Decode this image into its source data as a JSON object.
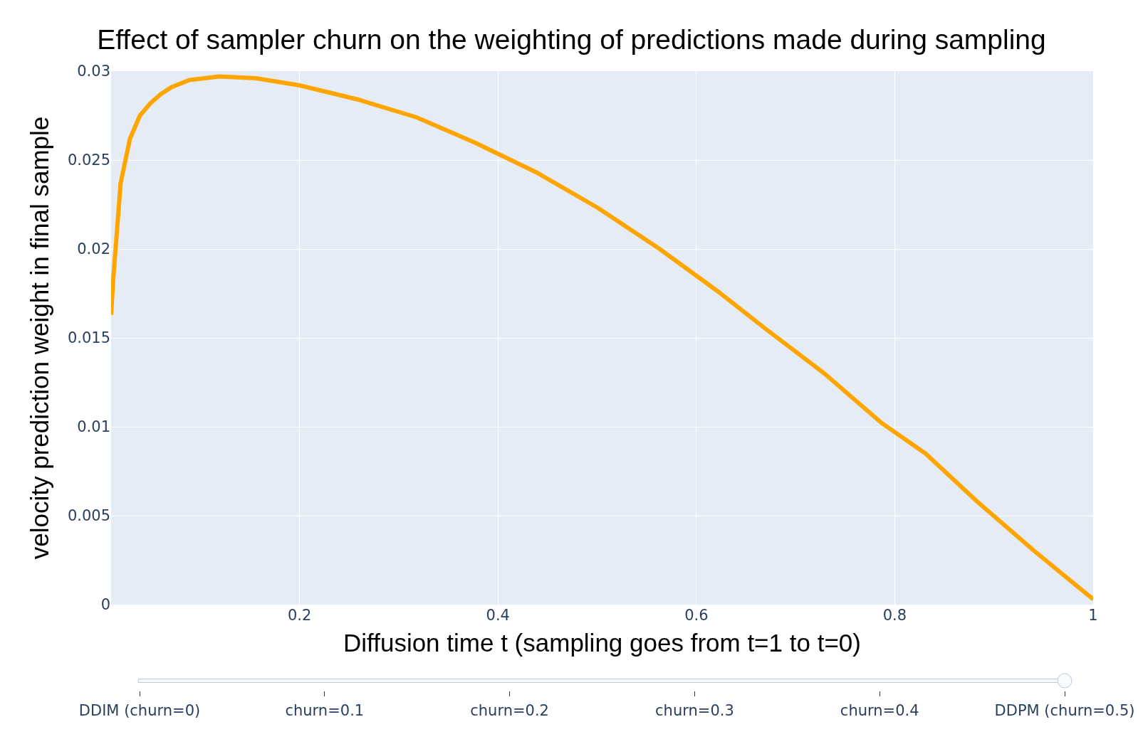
{
  "chart_data": {
    "type": "line",
    "title": "Effect of sampler churn on the weighting of predictions made during sampling",
    "xlabel": "Diffusion time t (sampling goes from t=1 to t=0)",
    "ylabel": "velocity prediction weight in final sample",
    "x": [
      0.01,
      0.012,
      0.0196,
      0.029,
      0.039,
      0.0497,
      0.06,
      0.071,
      0.089,
      0.119,
      0.156,
      0.2,
      0.259,
      0.318,
      0.376,
      0.439,
      0.501,
      0.563,
      0.622,
      0.67,
      0.729,
      0.787,
      0.831,
      0.883,
      0.941,
      1.0
    ],
    "series": [
      {
        "color": "#ffa500",
        "values": [
          0.0163,
          0.0182,
          0.0237,
          0.0262,
          0.0275,
          0.0282,
          0.0287,
          0.0291,
          0.0295,
          0.0297,
          0.0296,
          0.0292,
          0.0284,
          0.0274,
          0.026,
          0.0243,
          0.0223,
          0.02,
          0.0176,
          0.0155,
          0.013,
          0.0102,
          0.0085,
          0.0058,
          0.003,
          0.0003
        ]
      }
    ],
    "xlim": [
      0.01,
      1
    ],
    "xticks": [
      0.2,
      0.4,
      0.6,
      0.8,
      1
    ],
    "ylim": [
      0,
      0.03
    ],
    "yticks": [
      0,
      0.005,
      0.01,
      0.015,
      0.02,
      0.025,
      0.03
    ],
    "grid": true,
    "legend": false,
    "marker": "none",
    "line_style": "solid",
    "annotations": [
      "DDIM (churn=0)",
      "churn=0.1",
      "churn=0.2",
      "churn=0.3",
      "churn=0.4",
      "DDPM (churn=0.5)"
    ]
  }
}
